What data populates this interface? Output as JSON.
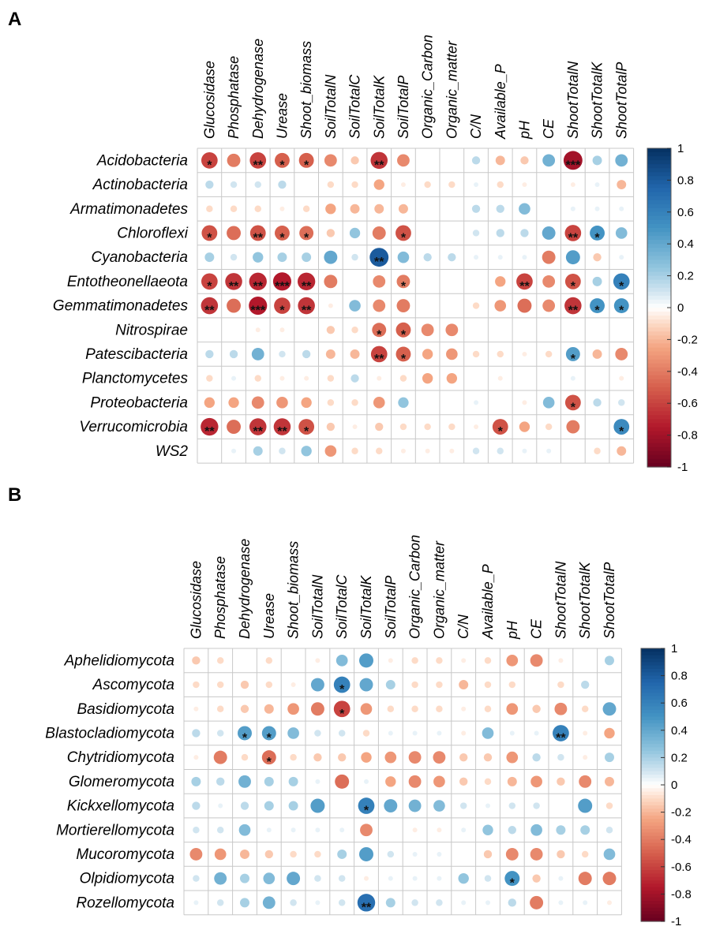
{
  "chart_data": [
    {
      "type": "heatmap",
      "panel_label": "A",
      "columns": [
        "Glucosidase",
        "Phosphatase",
        "Dehydrogenase",
        "Urease",
        "Shoot_biomass",
        "SoilTotalN",
        "SoilTotalC",
        "SoilTotalK",
        "SoilTotalP",
        "Organic_Carbon",
        "Organic_matter",
        "C/N",
        "Available_P",
        "pH",
        "CE",
        "ShootTotalN",
        "ShootTotalK",
        "ShootTotalP"
      ],
      "rows": [
        "Acidobacteria",
        "Actinobacteria",
        "Armatimonadetes",
        "Chloroflexi",
        "Cyanobacteria",
        "Entotheonellaeota",
        "Gemmatimonadetes",
        "Nitrospirae",
        "Patescibacteria",
        "Planctomycetes",
        "Proteobacteria",
        "Verrucomicrobia",
        "WS2"
      ],
      "values": [
        [
          -0.6,
          -0.4,
          -0.6,
          -0.5,
          -0.5,
          -0.35,
          -0.15,
          -0.65,
          -0.35,
          0,
          0,
          0.15,
          -0.2,
          -0.15,
          0.35,
          -0.8,
          0.2,
          0.35
        ],
        [
          0.15,
          0.1,
          0.1,
          0.15,
          0,
          -0.1,
          -0.1,
          -0.25,
          -0.05,
          -0.1,
          -0.1,
          0.05,
          -0.1,
          -0.05,
          0,
          -0.05,
          0.05,
          -0.2
        ],
        [
          -0.1,
          -0.1,
          -0.1,
          -0.05,
          -0.1,
          -0.25,
          -0.2,
          -0.2,
          -0.2,
          0,
          0,
          0.15,
          0.15,
          0.3,
          0,
          0.05,
          0.05,
          0.05
        ],
        [
          -0.55,
          -0.45,
          -0.55,
          -0.5,
          -0.45,
          -0.15,
          0.25,
          -0.4,
          -0.55,
          0,
          0,
          0.1,
          0.15,
          0.15,
          0.4,
          -0.6,
          0.5,
          0.3
        ],
        [
          0.2,
          0.1,
          0.25,
          0.2,
          0.2,
          0.4,
          0.1,
          0.8,
          0.3,
          0.15,
          0.15,
          0.05,
          0.05,
          0.05,
          -0.4,
          0.45,
          -0.15,
          0.05
        ],
        [
          -0.6,
          -0.65,
          -0.7,
          -0.75,
          -0.7,
          -0.4,
          0,
          -0.35,
          -0.4,
          0,
          0,
          0,
          -0.25,
          -0.6,
          -0.35,
          -0.55,
          0.2,
          0.6
        ],
        [
          -0.65,
          -0.45,
          -0.75,
          -0.6,
          -0.65,
          -0.05,
          0.3,
          -0.35,
          -0.4,
          0,
          0,
          -0.1,
          -0.3,
          -0.45,
          -0.35,
          -0.65,
          0.5,
          0.5
        ],
        [
          0,
          0,
          -0.05,
          -0.05,
          0,
          -0.15,
          -0.1,
          -0.45,
          -0.5,
          -0.35,
          -0.35,
          0,
          0,
          0,
          0,
          0,
          0,
          0
        ],
        [
          0.15,
          0.15,
          0.35,
          0.1,
          0.15,
          -0.2,
          -0.2,
          -0.6,
          -0.5,
          -0.25,
          -0.3,
          -0.1,
          -0.1,
          -0.05,
          -0.1,
          0.45,
          -0.2,
          -0.35
        ],
        [
          -0.1,
          0.05,
          -0.1,
          -0.05,
          -0.05,
          -0.1,
          0.15,
          -0.05,
          -0.1,
          -0.25,
          -0.25,
          0,
          -0.05,
          0,
          0,
          0.05,
          0,
          -0.05
        ],
        [
          -0.25,
          -0.25,
          -0.35,
          -0.3,
          -0.25,
          -0.1,
          -0.1,
          -0.3,
          0.25,
          0,
          0,
          0.05,
          0,
          -0.05,
          0.3,
          -0.55,
          0.15,
          0.1
        ],
        [
          -0.7,
          -0.45,
          -0.65,
          -0.65,
          -0.55,
          -0.15,
          -0.05,
          -0.15,
          -0.1,
          -0.1,
          -0.1,
          -0.05,
          -0.55,
          -0.25,
          -0.1,
          -0.4,
          0,
          0.55
        ],
        [
          0,
          0.05,
          0.2,
          0.1,
          0.25,
          -0.3,
          -0.1,
          -0.1,
          -0.05,
          -0.05,
          -0.05,
          0.1,
          0.1,
          0.05,
          0.05,
          0,
          -0.1,
          -0.2
        ]
      ],
      "significance": [
        [
          "*",
          "",
          "**",
          "*",
          "*",
          "",
          "",
          "**",
          "",
          "",
          "",
          "",
          "",
          "",
          "",
          "***",
          "",
          ""
        ],
        [
          "",
          "",
          "",
          "",
          "",
          "",
          "",
          "",
          "",
          "",
          "",
          "",
          "",
          "",
          "",
          "",
          "",
          ""
        ],
        [
          "",
          "",
          "",
          "",
          "",
          "",
          "",
          "",
          "",
          "",
          "",
          "",
          "",
          "",
          "",
          "",
          "",
          ""
        ],
        [
          "*",
          "",
          "**",
          "*",
          "*",
          "",
          "",
          "",
          "*",
          "",
          "",
          "",
          "",
          "",
          "",
          "**",
          "*",
          ""
        ],
        [
          "",
          "",
          "",
          "",
          "",
          "",
          "",
          "**",
          "",
          "",
          "",
          "",
          "",
          "",
          "",
          "",
          "",
          ""
        ],
        [
          "*",
          "**",
          "**",
          "***",
          "**",
          "",
          "",
          "",
          "*",
          "",
          "",
          "",
          "",
          "**",
          "",
          "*",
          "",
          "*"
        ],
        [
          "**",
          "",
          "***",
          "*",
          "**",
          "",
          "",
          "",
          "",
          "",
          "",
          "",
          "",
          "",
          "",
          "**",
          "*",
          "*"
        ],
        [
          "",
          "",
          "",
          "",
          "",
          "",
          "",
          "*",
          "*",
          "",
          "",
          "",
          "",
          "",
          "",
          "",
          "",
          ""
        ],
        [
          "",
          "",
          "",
          "",
          "",
          "",
          "",
          "**",
          "*",
          "",
          "",
          "",
          "",
          "",
          "",
          "*",
          "",
          ""
        ],
        [
          "",
          "",
          "",
          "",
          "",
          "",
          "",
          "",
          "",
          "",
          "",
          "",
          "",
          "",
          "",
          "",
          "",
          ""
        ],
        [
          "",
          "",
          "",
          "",
          "",
          "",
          "",
          "",
          "",
          "",
          "",
          "",
          "",
          "",
          "",
          "*",
          "",
          ""
        ],
        [
          "**",
          "",
          "**",
          "**",
          "*",
          "",
          "",
          "",
          "",
          "",
          "",
          "",
          "*",
          "",
          "",
          "",
          "",
          "*"
        ],
        [
          "",
          "",
          "",
          "",
          "",
          "",
          "",
          "",
          "",
          "",
          "",
          "",
          "",
          "",
          "",
          "",
          "",
          ""
        ]
      ],
      "legend_ticks": [
        "1",
        "0.8",
        "0.6",
        "0.4",
        "0.2",
        "0",
        "-0.2",
        "-0.4",
        "-0.6",
        "-0.8",
        "-1"
      ],
      "scale": [
        -1,
        1
      ]
    },
    {
      "type": "heatmap",
      "panel_label": "B",
      "columns": [
        "Glucosidase",
        "Phosphatase",
        "Dehydrogenase",
        "Urease",
        "Shoot_biomass",
        "SoilTotalN",
        "SoilTotalC",
        "SoilTotalK",
        "SoilTotalP",
        "Organic_Carbon",
        "Organic_matter",
        "C/N",
        "Available_P",
        "pH",
        "CE",
        "ShootTotalN",
        "ShootTotalK",
        "ShootTotalP"
      ],
      "rows": [
        "Aphelidiomycota",
        "Ascomycota",
        "Basidiomycota",
        "Blastocladiomycota",
        "Chytridiomycota",
        "Glomeromycota",
        "Kickxellomycota",
        "Mortierellomycota",
        "Mucoromycota",
        "Olpidiomycota",
        "Rozellomycota"
      ],
      "values": [
        [
          -0.15,
          -0.1,
          0,
          -0.1,
          0,
          -0.05,
          0.3,
          0.45,
          -0.05,
          -0.1,
          -0.1,
          -0.05,
          -0.1,
          -0.3,
          -0.35,
          -0.05,
          0,
          0.2
        ],
        [
          -0.1,
          -0.1,
          -0.15,
          -0.1,
          -0.05,
          0.4,
          0.6,
          0.4,
          0.2,
          -0.1,
          -0.1,
          -0.2,
          -0.1,
          -0.1,
          0,
          -0.1,
          0.15,
          0
        ],
        [
          -0.05,
          -0.1,
          -0.15,
          -0.2,
          -0.3,
          -0.4,
          -0.6,
          -0.3,
          -0.1,
          -0.1,
          -0.1,
          -0.05,
          -0.1,
          -0.3,
          -0.15,
          -0.35,
          -0.1,
          0.4
        ],
        [
          0.15,
          0.1,
          0.45,
          0.45,
          0.3,
          0.1,
          0.1,
          -0.1,
          0.05,
          0.05,
          0.05,
          -0.05,
          0.3,
          0.05,
          0.05,
          0.6,
          -0.05,
          -0.25
        ],
        [
          -0.05,
          -0.4,
          -0.1,
          -0.45,
          -0.1,
          -0.15,
          -0.15,
          -0.25,
          -0.3,
          -0.35,
          -0.35,
          -0.15,
          -0.15,
          -0.3,
          0.15,
          0.1,
          -0.05,
          0.2
        ],
        [
          0.2,
          0.15,
          0.35,
          0.2,
          0.2,
          0.05,
          -0.45,
          0.05,
          -0.25,
          -0.35,
          -0.3,
          -0.15,
          -0.1,
          -0.2,
          -0.3,
          -0.15,
          -0.35,
          -0.2
        ],
        [
          0.15,
          0.05,
          0.15,
          0.2,
          0.2,
          0.45,
          0,
          0.6,
          0.4,
          0.35,
          0.3,
          0.1,
          0.05,
          0.1,
          0.1,
          0,
          0.45,
          -0.1
        ],
        [
          0.1,
          0.1,
          0.3,
          0.05,
          0.05,
          0.05,
          0.05,
          -0.35,
          0,
          -0.05,
          -0.05,
          0.05,
          0.25,
          0.15,
          0.3,
          0.2,
          0.2,
          0.1
        ],
        [
          -0.35,
          -0.3,
          -0.2,
          -0.15,
          -0.1,
          -0.1,
          0.2,
          0.45,
          0.1,
          0.05,
          0.05,
          0,
          -0.15,
          -0.35,
          -0.35,
          -0.15,
          -0.1,
          0.3
        ],
        [
          0.1,
          0.35,
          0.2,
          0.3,
          0.4,
          0.1,
          0.1,
          -0.05,
          0.05,
          0.05,
          0.05,
          0.25,
          0.1,
          0.5,
          -0.15,
          0.05,
          -0.4,
          -0.4
        ],
        [
          0.05,
          0.1,
          0.2,
          0.35,
          0.1,
          0.05,
          0.1,
          0.7,
          0.2,
          0.1,
          0.1,
          0.05,
          0.05,
          0.15,
          -0.4,
          0.05,
          0.05,
          -0.05
        ]
      ],
      "significance": [
        [
          "",
          "",
          "",
          "",
          "",
          "",
          "",
          "",
          "",
          "",
          "",
          "",
          "",
          "",
          "",
          "",
          "",
          ""
        ],
        [
          "",
          "",
          "",
          "",
          "",
          "",
          "*",
          "",
          "",
          "",
          "",
          "",
          "",
          "",
          "",
          "",
          "",
          ""
        ],
        [
          "",
          "",
          "",
          "",
          "",
          "",
          "*",
          "",
          "",
          "",
          "",
          "",
          "",
          "",
          "",
          "",
          "",
          ""
        ],
        [
          "",
          "",
          "*",
          "*",
          "",
          "",
          "",
          "",
          "",
          "",
          "",
          "",
          "",
          "",
          "",
          "**",
          "",
          ""
        ],
        [
          "",
          "",
          "",
          "*",
          "",
          "",
          "",
          "",
          "",
          "",
          "",
          "",
          "",
          "",
          "",
          "",
          "",
          ""
        ],
        [
          "",
          "",
          "",
          "",
          "",
          "",
          "",
          "",
          "",
          "",
          "",
          "",
          "",
          "",
          "",
          "",
          "",
          ""
        ],
        [
          "",
          "",
          "",
          "",
          "",
          "",
          "",
          "*",
          "",
          "",
          "",
          "",
          "",
          "",
          "",
          "",
          "",
          ""
        ],
        [
          "",
          "",
          "",
          "",
          "",
          "",
          "",
          "",
          "",
          "",
          "",
          "",
          "",
          "",
          "",
          "",
          "",
          ""
        ],
        [
          "",
          "",
          "",
          "",
          "",
          "",
          "",
          "",
          "",
          "",
          "",
          "",
          "",
          "",
          "",
          "",
          "",
          ""
        ],
        [
          "",
          "",
          "",
          "",
          "",
          "",
          "",
          "",
          "",
          "",
          "",
          "",
          "",
          "*",
          "",
          "",
          "",
          ""
        ],
        [
          "",
          "",
          "",
          "",
          "",
          "",
          "",
          "**",
          "",
          "",
          "",
          "",
          "",
          "",
          "",
          "",
          "",
          ""
        ]
      ],
      "legend_ticks": [
        "1",
        "0.8",
        "0.6",
        "0.4",
        "0.2",
        "0",
        "-0.2",
        "-0.4",
        "-0.6",
        "-0.8",
        "-1"
      ],
      "scale": [
        -1,
        1
      ]
    }
  ]
}
